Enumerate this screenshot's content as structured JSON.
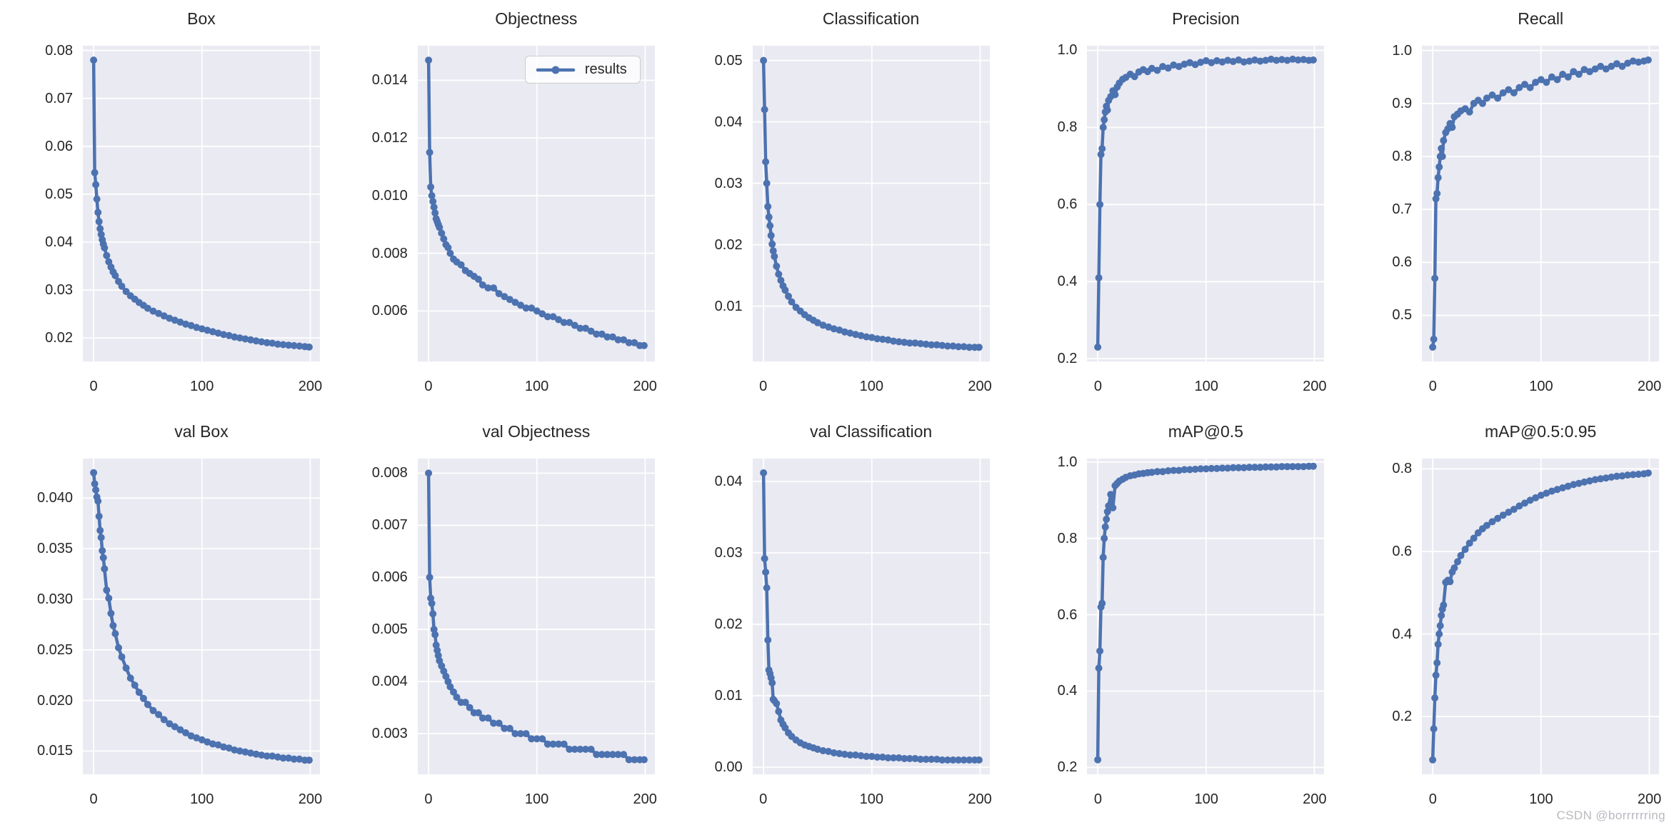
{
  "watermark": {
    "text": "CSDN @borrrrrring"
  },
  "colors": {
    "line": "#4c72b0",
    "plot_background": "#eaeaf2",
    "grid": "#ffffff",
    "text": "#262626",
    "watermark": "#b9b9c0"
  },
  "chart_data": {
    "type": "line",
    "legend": {
      "label": "results",
      "shown_in": "Objectness"
    },
    "xlabel": "",
    "ylabel": "",
    "x_ticks": [
      0,
      100,
      200
    ],
    "xlim": [
      -9.95,
      208.95
    ],
    "x": [
      0,
      1,
      2,
      3,
      4,
      5,
      6,
      7,
      8,
      9,
      10,
      12,
      14,
      16,
      18,
      20,
      23,
      26,
      30,
      34,
      38,
      42,
      46,
      50,
      55,
      60,
      65,
      70,
      75,
      80,
      85,
      90,
      95,
      100,
      105,
      110,
      115,
      120,
      125,
      130,
      135,
      140,
      145,
      150,
      155,
      160,
      165,
      170,
      175,
      180,
      185,
      190,
      195,
      199
    ],
    "charts": [
      {
        "title": "Box",
        "y_ticks": [
          "0.02",
          "0.03",
          "0.04",
          "0.05",
          "0.06",
          "0.07",
          "0.08"
        ],
        "ylim": [
          0.0151,
          0.081
        ],
        "values": [
          0.078,
          0.0545,
          0.052,
          0.049,
          0.0462,
          0.0443,
          0.0428,
          0.0416,
          0.0405,
          0.0396,
          0.0388,
          0.0372,
          0.0359,
          0.0348,
          0.0338,
          0.033,
          0.0318,
          0.0308,
          0.0297,
          0.0288,
          0.0281,
          0.0274,
          0.0268,
          0.0262,
          0.0256,
          0.0251,
          0.0246,
          0.0241,
          0.0237,
          0.0233,
          0.0229,
          0.0226,
          0.0222,
          0.0219,
          0.0216,
          0.0213,
          0.021,
          0.0207,
          0.0205,
          0.0202,
          0.02,
          0.0198,
          0.0196,
          0.0194,
          0.0192,
          0.019,
          0.0189,
          0.0187,
          0.0186,
          0.0185,
          0.0184,
          0.0183,
          0.0182,
          0.0181
        ]
      },
      {
        "title": "Objectness",
        "y_ticks": [
          "0.006",
          "0.008",
          "0.010",
          "0.012",
          "0.014"
        ],
        "ylim": [
          0.00425,
          0.0152
        ],
        "values": [
          0.0147,
          0.0115,
          0.0103,
          0.01,
          0.0098,
          0.0096,
          0.0094,
          0.0092,
          0.0091,
          0.009,
          0.0089,
          0.0087,
          0.0085,
          0.0083,
          0.0082,
          0.008,
          0.0078,
          0.0077,
          0.0076,
          0.0074,
          0.0073,
          0.0072,
          0.0071,
          0.0069,
          0.0068,
          0.0068,
          0.0066,
          0.0065,
          0.0064,
          0.0063,
          0.0062,
          0.0061,
          0.0061,
          0.006,
          0.0059,
          0.0058,
          0.0058,
          0.0057,
          0.0056,
          0.0056,
          0.0055,
          0.0054,
          0.0054,
          0.0053,
          0.0052,
          0.0052,
          0.0051,
          0.0051,
          0.005,
          0.005,
          0.0049,
          0.0049,
          0.0048,
          0.0048
        ]
      },
      {
        "title": "Classification",
        "y_ticks": [
          "0.01",
          "0.02",
          "0.03",
          "0.04",
          "0.05"
        ],
        "ylim": [
          0.001,
          0.0524
        ],
        "values": [
          0.05,
          0.042,
          0.0335,
          0.03,
          0.0262,
          0.0245,
          0.0231,
          0.0215,
          0.0201,
          0.019,
          0.0181,
          0.0165,
          0.0152,
          0.0142,
          0.0133,
          0.0126,
          0.0116,
          0.0107,
          0.0098,
          0.0092,
          0.0086,
          0.0081,
          0.0077,
          0.0073,
          0.0069,
          0.0066,
          0.0063,
          0.0061,
          0.0058,
          0.0056,
          0.0054,
          0.0052,
          0.005,
          0.0049,
          0.0047,
          0.0046,
          0.0045,
          0.0043,
          0.0042,
          0.0041,
          0.004,
          0.004,
          0.0039,
          0.0038,
          0.0037,
          0.0037,
          0.0036,
          0.0035,
          0.0035,
          0.0034,
          0.0034,
          0.0033,
          0.0033,
          0.0033
        ]
      },
      {
        "title": "Precision",
        "y_ticks": [
          "0.2",
          "0.4",
          "0.6",
          "0.8",
          "1.0"
        ],
        "ylim": [
          0.193,
          1.012
        ],
        "values": [
          0.23,
          0.41,
          0.6,
          0.73,
          0.745,
          0.8,
          0.82,
          0.84,
          0.855,
          0.845,
          0.87,
          0.88,
          0.895,
          0.885,
          0.905,
          0.915,
          0.925,
          0.93,
          0.938,
          0.932,
          0.944,
          0.95,
          0.945,
          0.953,
          0.948,
          0.958,
          0.954,
          0.962,
          0.958,
          0.964,
          0.968,
          0.963,
          0.969,
          0.973,
          0.968,
          0.973,
          0.97,
          0.974,
          0.971,
          0.975,
          0.97,
          0.972,
          0.975,
          0.972,
          0.974,
          0.977,
          0.974,
          0.976,
          0.974,
          0.977,
          0.975,
          0.976,
          0.974,
          0.975
        ]
      },
      {
        "title": "Recall",
        "y_ticks": [
          "0.5",
          "0.6",
          "0.7",
          "0.8",
          "0.9",
          "1.0"
        ],
        "ylim": [
          0.413,
          1.009
        ],
        "values": [
          0.44,
          0.455,
          0.57,
          0.72,
          0.73,
          0.76,
          0.78,
          0.8,
          0.815,
          0.8,
          0.83,
          0.845,
          0.852,
          0.862,
          0.855,
          0.875,
          0.88,
          0.886,
          0.89,
          0.884,
          0.9,
          0.906,
          0.9,
          0.91,
          0.916,
          0.91,
          0.92,
          0.926,
          0.92,
          0.93,
          0.936,
          0.93,
          0.94,
          0.945,
          0.94,
          0.95,
          0.945,
          0.955,
          0.95,
          0.96,
          0.955,
          0.964,
          0.96,
          0.965,
          0.97,
          0.965,
          0.97,
          0.975,
          0.97,
          0.976,
          0.98,
          0.978,
          0.98,
          0.982
        ]
      },
      {
        "title": "val Box",
        "y_ticks": [
          "0.015",
          "0.020",
          "0.025",
          "0.030",
          "0.035",
          "0.040"
        ],
        "ylim": [
          0.0127,
          0.0439
        ],
        "values": [
          0.0425,
          0.0414,
          0.0408,
          0.0401,
          0.0397,
          0.0382,
          0.0368,
          0.0361,
          0.0348,
          0.0341,
          0.033,
          0.0309,
          0.0301,
          0.0286,
          0.0274,
          0.0266,
          0.0252,
          0.0243,
          0.0232,
          0.0222,
          0.0215,
          0.0208,
          0.0202,
          0.0196,
          0.019,
          0.0186,
          0.0181,
          0.0177,
          0.0174,
          0.0171,
          0.0168,
          0.0165,
          0.0163,
          0.0161,
          0.0159,
          0.0157,
          0.0156,
          0.0154,
          0.0153,
          0.0151,
          0.015,
          0.0149,
          0.0148,
          0.0147,
          0.0146,
          0.0145,
          0.0145,
          0.0144,
          0.0143,
          0.0143,
          0.0142,
          0.0142,
          0.0141,
          0.0141
        ]
      },
      {
        "title": "val Objectness",
        "y_ticks": [
          "0.003",
          "0.004",
          "0.005",
          "0.006",
          "0.007",
          "0.008"
        ],
        "ylim": [
          0.00222,
          0.00828
        ],
        "values": [
          0.008,
          0.006,
          0.0056,
          0.0055,
          0.0053,
          0.005,
          0.0049,
          0.0047,
          0.0046,
          0.0045,
          0.0044,
          0.0043,
          0.0042,
          0.0041,
          0.004,
          0.0039,
          0.0038,
          0.0037,
          0.0036,
          0.0036,
          0.0035,
          0.0034,
          0.0034,
          0.0033,
          0.0033,
          0.0032,
          0.0032,
          0.0031,
          0.0031,
          0.003,
          0.003,
          0.003,
          0.0029,
          0.0029,
          0.0029,
          0.0028,
          0.0028,
          0.0028,
          0.0028,
          0.0027,
          0.0027,
          0.0027,
          0.0027,
          0.0027,
          0.0026,
          0.0026,
          0.0026,
          0.0026,
          0.0026,
          0.0026,
          0.0025,
          0.0025,
          0.0025,
          0.0025
        ]
      },
      {
        "title": "val Classification",
        "y_ticks": [
          "0.00",
          "0.01",
          "0.02",
          "0.03",
          "0.04"
        ],
        "ylim": [
          -0.001,
          0.0432
        ],
        "values": [
          0.0412,
          0.0292,
          0.0273,
          0.0251,
          0.0178,
          0.0136,
          0.0131,
          0.0125,
          0.0118,
          0.0095,
          0.0093,
          0.0089,
          0.0078,
          0.0066,
          0.006,
          0.0055,
          0.0048,
          0.0043,
          0.0038,
          0.0034,
          0.0031,
          0.0029,
          0.0027,
          0.0025,
          0.0023,
          0.0022,
          0.002,
          0.0019,
          0.0018,
          0.0017,
          0.0017,
          0.0016,
          0.0015,
          0.0015,
          0.0014,
          0.0014,
          0.0013,
          0.0013,
          0.0013,
          0.0012,
          0.0012,
          0.0012,
          0.0011,
          0.0011,
          0.0011,
          0.0011,
          0.001,
          0.001,
          0.001,
          0.001,
          0.001,
          0.001,
          0.001,
          0.001
        ]
      },
      {
        "title": "mAP@0.5",
        "y_ticks": [
          "0.2",
          "0.4",
          "0.6",
          "0.8",
          "1.0"
        ],
        "ylim": [
          0.182,
          1.009
        ],
        "values": [
          0.22,
          0.46,
          0.505,
          0.62,
          0.63,
          0.75,
          0.8,
          0.83,
          0.85,
          0.87,
          0.885,
          0.915,
          0.88,
          0.938,
          0.944,
          0.95,
          0.955,
          0.96,
          0.964,
          0.966,
          0.969,
          0.97,
          0.972,
          0.973,
          0.975,
          0.975,
          0.977,
          0.978,
          0.978,
          0.98,
          0.98,
          0.981,
          0.982,
          0.982,
          0.983,
          0.983,
          0.984,
          0.984,
          0.985,
          0.985,
          0.985,
          0.986,
          0.986,
          0.986,
          0.987,
          0.987,
          0.987,
          0.988,
          0.988,
          0.988,
          0.988,
          0.988,
          0.989,
          0.989
        ]
      },
      {
        "title": "mAP@0.5:0.95",
        "y_ticks": [
          "0.2",
          "0.4",
          "0.6",
          "0.8"
        ],
        "ylim": [
          0.06,
          0.825
        ],
        "values": [
          0.095,
          0.17,
          0.245,
          0.3,
          0.33,
          0.375,
          0.4,
          0.42,
          0.445,
          0.46,
          0.47,
          0.525,
          0.53,
          0.527,
          0.55,
          0.56,
          0.575,
          0.59,
          0.605,
          0.62,
          0.632,
          0.645,
          0.655,
          0.663,
          0.672,
          0.68,
          0.688,
          0.695,
          0.702,
          0.71,
          0.717,
          0.724,
          0.73,
          0.736,
          0.741,
          0.746,
          0.75,
          0.754,
          0.758,
          0.762,
          0.765,
          0.768,
          0.771,
          0.774,
          0.776,
          0.778,
          0.78,
          0.782,
          0.783,
          0.785,
          0.786,
          0.787,
          0.788,
          0.79
        ]
      }
    ]
  }
}
